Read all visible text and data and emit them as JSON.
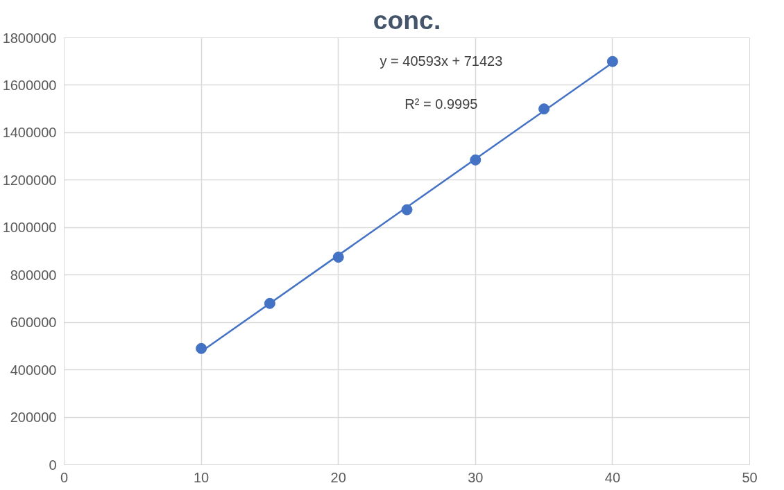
{
  "chart_data": {
    "type": "scatter",
    "title": "conc.",
    "x": [
      10,
      15,
      20,
      25,
      30,
      35,
      40
    ],
    "series": [
      {
        "color": "#4472c4",
        "marker": "circle",
        "values": [
          490000,
          680000,
          875000,
          1075000,
          1285000,
          1500000,
          1700000
        ]
      },
      {
        "type": "line",
        "color": "#4472c4",
        "marker": "none",
        "x": [
          10,
          40
        ],
        "values": [
          477000,
          1695000
        ]
      }
    ],
    "annotations": [
      "y = 40593x + 71423",
      "R² = 0.9995"
    ],
    "xlim": [
      0,
      50
    ],
    "xticks": [
      0,
      10,
      20,
      30,
      40,
      50
    ],
    "ylim": [
      0,
      1800000
    ],
    "yticks": [
      0,
      200000,
      400000,
      600000,
      800000,
      1000000,
      1200000,
      1400000,
      1600000,
      1800000
    ],
    "grid": true,
    "line_style": "solid"
  }
}
